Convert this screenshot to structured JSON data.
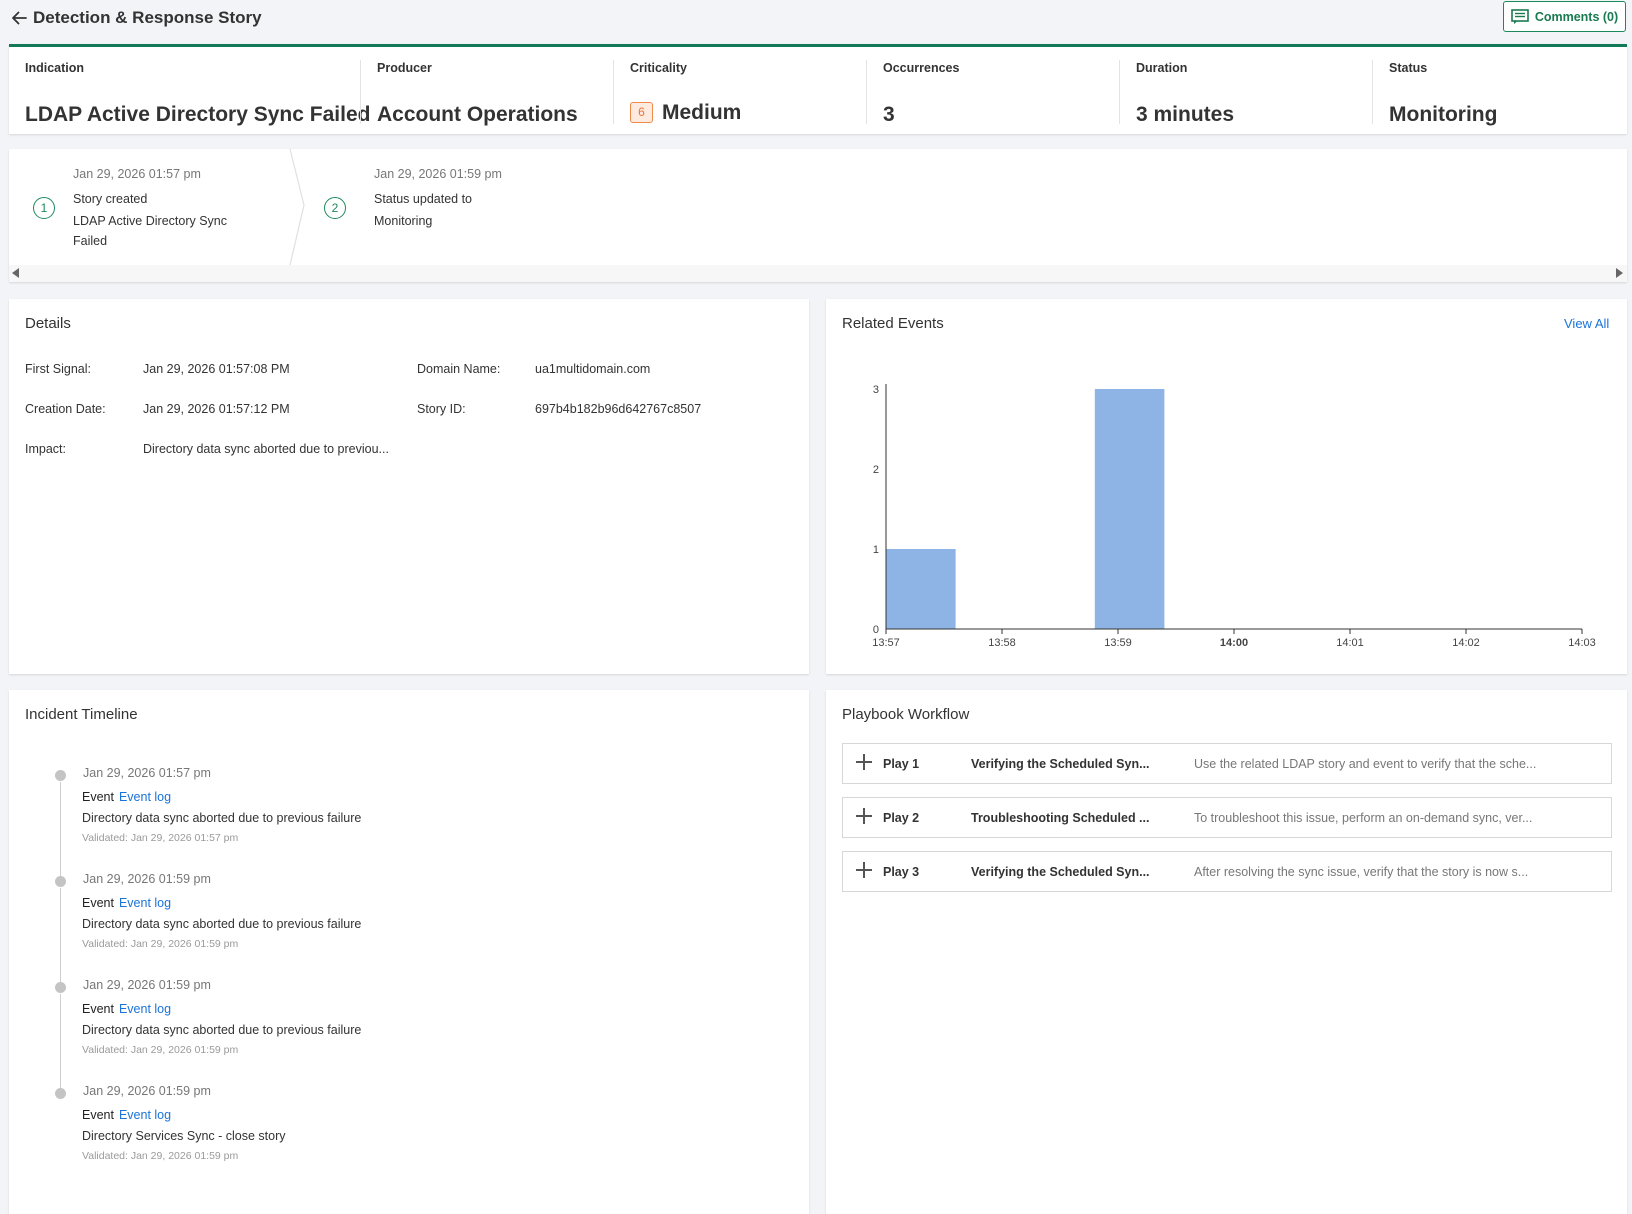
{
  "header": {
    "title": "Detection & Response Story",
    "comments_label": "Comments (0)"
  },
  "summary": {
    "indication_label": "Indication",
    "indication_value": "LDAP Active Directory Sync Failed",
    "producer_label": "Producer",
    "producer_value": "Account Operations",
    "criticality_label": "Criticality",
    "criticality_score": "6",
    "criticality_value": "Medium",
    "occurrences_label": "Occurrences",
    "occurrences_value": "3",
    "duration_label": "Duration",
    "duration_value": "3 minutes",
    "status_label": "Status",
    "status_value": "Monitoring"
  },
  "steps": [
    {
      "num": "1",
      "date": "Jan 29, 2026 01:57 pm",
      "line1": "Story created",
      "line2": "LDAP Active Directory Sync",
      "line3": "Failed"
    },
    {
      "num": "2",
      "date": "Jan 29, 2026 01:59 pm",
      "line1": "Status updated to",
      "line2": "Monitoring"
    }
  ],
  "details": {
    "title": "Details",
    "first_signal_label": "First Signal:",
    "first_signal_value": "Jan 29, 2026 01:57:08 PM",
    "creation_date_label": "Creation Date:",
    "creation_date_value": "Jan 29, 2026 01:57:12 PM",
    "impact_label": "Impact:",
    "impact_value": "Directory data sync aborted due to previou...",
    "domain_label": "Domain Name:",
    "domain_value": "ua1multidomain.com",
    "story_id_label": "Story ID:",
    "story_id_value": "697b4b182b96d642767c8507"
  },
  "related_events": {
    "title": "Related Events",
    "view_all_label": "View All"
  },
  "chart_data": {
    "type": "bar",
    "title": "",
    "xlabel": "",
    "ylabel": "",
    "x_ticks": [
      "13:57",
      "13:58",
      "13:59",
      "14:00",
      "14:01",
      "14:02",
      "14:03"
    ],
    "bold_tick": "14:00",
    "y_ticks": [
      0,
      1,
      2,
      3
    ],
    "ylim": [
      0,
      3
    ],
    "bars": [
      {
        "start": "13:57",
        "end": "13:57:36",
        "value": 1
      },
      {
        "start": "13:58:48",
        "end": "13:59:24",
        "value": 3
      }
    ],
    "bar_color": "#8db4e4",
    "grid": false
  },
  "timeline": {
    "title": "Incident Timeline",
    "items": [
      {
        "date": "Jan 29, 2026 01:57 pm",
        "event": "Event",
        "link": "Event log",
        "desc": "Directory data sync aborted due to previous failure",
        "validated": "Validated: Jan 29, 2026 01:57 pm"
      },
      {
        "date": "Jan 29, 2026 01:59 pm",
        "event": "Event",
        "link": "Event log",
        "desc": "Directory data sync aborted due to previous failure",
        "validated": "Validated: Jan 29, 2026 01:59 pm"
      },
      {
        "date": "Jan 29, 2026 01:59 pm",
        "event": "Event",
        "link": "Event log",
        "desc": "Directory data sync aborted due to previous failure",
        "validated": "Validated: Jan 29, 2026 01:59 pm"
      },
      {
        "date": "Jan 29, 2026 01:59 pm",
        "event": "Event",
        "link": "Event log",
        "desc": "Directory Services Sync - close story",
        "validated": "Validated: Jan 29, 2026 01:59 pm"
      }
    ]
  },
  "playbook": {
    "title": "Playbook Workflow",
    "plays": [
      {
        "num": "Play 1",
        "name": "Verifying the Scheduled Syn...",
        "desc": "Use the related LDAP story and event to verify that the sche..."
      },
      {
        "num": "Play 2",
        "name": "Troubleshooting Scheduled ...",
        "desc": "To troubleshoot this issue, perform an on-demand sync, ver..."
      },
      {
        "num": "Play 3",
        "name": "Verifying the Scheduled Syn...",
        "desc": "After resolving the sync issue, verify that the story is now s..."
      }
    ]
  }
}
